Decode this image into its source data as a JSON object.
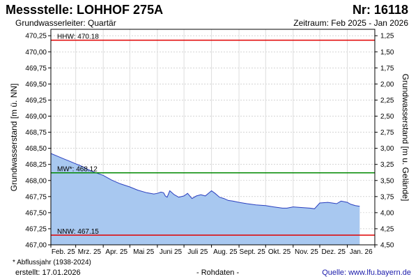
{
  "header": {
    "title": "Messstelle: LOHHOF 275A",
    "number": "Nr: 16118",
    "aquifer": "Grundwasserleiter: Quartär",
    "period": "Zeitraum: Feb 2025 - Jan 2026"
  },
  "footer": {
    "footnote": "* Abflussjahr (1938-2024)",
    "created": "erstellt:  17.01.2026",
    "rawdata": "- Rohdaten -",
    "source": "Quelle:  www.lfu.bayern.de"
  },
  "colors": {
    "fill": "#a8c8f0",
    "line": "#2a3fbf",
    "hhw": "#e00000",
    "nnw": "#e00000",
    "mw": "#008800",
    "grid": "#bbbbbb"
  },
  "chart_data": {
    "type": "area",
    "ylabel": "Grundwasserstand [m ü. NN]",
    "ylabel_right": "Grundwasserstand [m u. Gelände]",
    "ylim": [
      467.0,
      470.35
    ],
    "y_ticks": [
      "467,00",
      "467,25",
      "467,50",
      "467,75",
      "468,00",
      "468,25",
      "468,50",
      "468,75",
      "469,00",
      "469,25",
      "469,50",
      "469,75",
      "470,00",
      "470,25"
    ],
    "y2_ticks": [
      "4,50",
      "4,25",
      "4,00",
      "3,75",
      "3,50",
      "3,25",
      "3,00",
      "2,75",
      "2,50",
      "2,25",
      "2,00",
      "1,75",
      "1,50",
      "1,25"
    ],
    "x_ticks": [
      "Feb. 25",
      "Mrz. 25",
      "Apr. 25",
      "Mai 25",
      "Juni 25",
      "Juli 25",
      "Aug. 25",
      "Sept. 25",
      "Okt. 25",
      "Nov. 25",
      "Dez. 25",
      "Jan. 26"
    ],
    "reference_lines": [
      {
        "label": "HHW: 470.18",
        "value": 470.18,
        "color": "#e00000"
      },
      {
        "label": "MW*: 468.12",
        "value": 468.12,
        "color": "#008800"
      },
      {
        "label": "NNW: 467.15",
        "value": 467.15,
        "color": "#e00000"
      }
    ],
    "x": [
      "2025-02-01",
      "2025-02-08",
      "2025-02-15",
      "2025-02-22",
      "2025-03-01",
      "2025-03-08",
      "2025-03-15",
      "2025-03-22",
      "2025-04-01",
      "2025-04-10",
      "2025-04-20",
      "2025-05-01",
      "2025-05-10",
      "2025-05-20",
      "2025-05-28",
      "2025-06-01",
      "2025-06-05",
      "2025-06-08",
      "2025-06-10",
      "2025-06-12",
      "2025-06-15",
      "2025-06-20",
      "2025-06-25",
      "2025-07-01",
      "2025-07-05",
      "2025-07-10",
      "2025-07-15",
      "2025-07-20",
      "2025-07-25",
      "2025-08-01",
      "2025-08-05",
      "2025-08-10",
      "2025-08-15",
      "2025-08-20",
      "2025-08-25",
      "2025-09-01",
      "2025-09-10",
      "2025-09-20",
      "2025-10-01",
      "2025-10-10",
      "2025-10-20",
      "2025-10-25",
      "2025-11-01",
      "2025-11-10",
      "2025-11-20",
      "2025-11-25",
      "2025-12-01",
      "2025-12-10",
      "2025-12-15",
      "2025-12-20",
      "2025-12-25",
      "2026-01-01",
      "2026-01-05",
      "2026-01-10",
      "2026-01-15"
    ],
    "values": [
      468.42,
      468.38,
      468.34,
      468.3,
      468.26,
      468.22,
      468.17,
      468.13,
      468.08,
      468.01,
      467.95,
      467.9,
      467.85,
      467.81,
      467.79,
      467.8,
      467.82,
      467.81,
      467.76,
      467.74,
      467.84,
      467.78,
      467.74,
      467.76,
      467.8,
      467.72,
      467.76,
      467.78,
      467.76,
      467.84,
      467.8,
      467.74,
      467.72,
      467.69,
      467.68,
      467.66,
      467.64,
      467.62,
      467.61,
      467.59,
      467.57,
      467.57,
      467.59,
      467.58,
      467.57,
      467.56,
      467.65,
      467.66,
      467.65,
      467.64,
      467.68,
      467.66,
      467.63,
      467.61,
      467.6
    ]
  }
}
